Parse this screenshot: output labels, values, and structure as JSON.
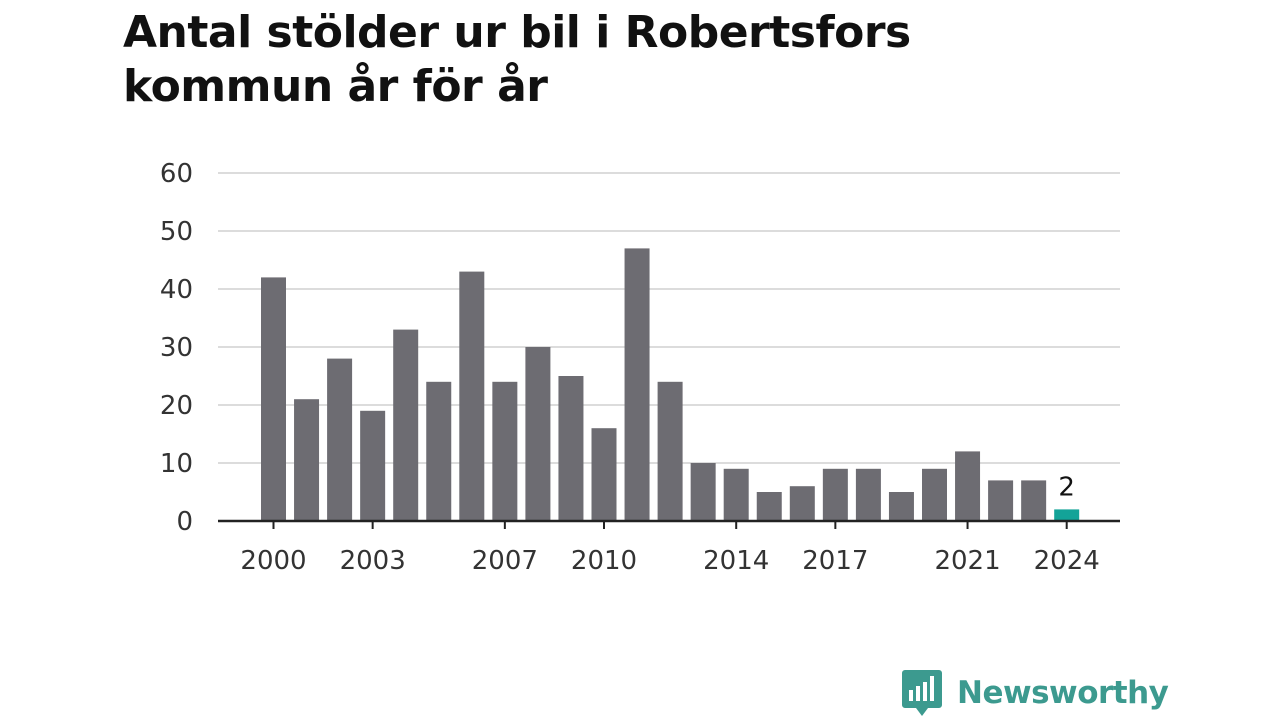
{
  "title": "Antal stölder ur bil i Robertsfors kommun år för år",
  "logo": {
    "text": "Newsworthy",
    "icon": "newsworthy-chat-bar-icon"
  },
  "colors": {
    "bar": "#6d6c72",
    "highlight": "#13a398",
    "grid": "#dcdcdc",
    "axis": "#222222",
    "brand": "#3c9a8f"
  },
  "chart_data": {
    "type": "bar",
    "categories": [
      "2000",
      "2001",
      "2002",
      "2003",
      "2004",
      "2005",
      "2006",
      "2007",
      "2008",
      "2009",
      "2010",
      "2011",
      "2012",
      "2013",
      "2014",
      "2015",
      "2016",
      "2017",
      "2018",
      "2019",
      "2020",
      "2021",
      "2022",
      "2023",
      "2024"
    ],
    "values": [
      42,
      21,
      28,
      19,
      33,
      24,
      43,
      24,
      30,
      25,
      16,
      47,
      24,
      10,
      9,
      5,
      6,
      9,
      9,
      5,
      9,
      12,
      7,
      7,
      2
    ],
    "title": "Antal stölder ur bil i Robertsfors kommun år för år",
    "xlabel": "",
    "ylabel": "",
    "ylim": [
      0,
      60
    ],
    "yticks": [
      0,
      10,
      20,
      30,
      40,
      50,
      60
    ],
    "xtick_labels": [
      "2000",
      "2003",
      "2007",
      "2010",
      "2014",
      "2017",
      "2021",
      "2024"
    ],
    "highlight": {
      "category": "2024",
      "label": "2"
    },
    "grid": true,
    "legend": "none"
  }
}
